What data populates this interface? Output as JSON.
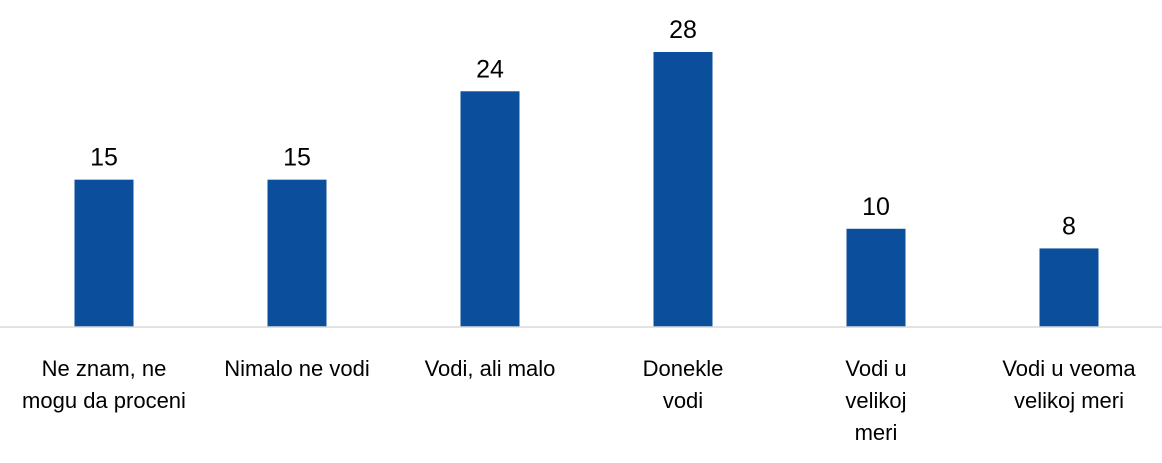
{
  "chart_data": {
    "type": "bar",
    "categories": [
      "Ne znam, ne mogu da proceni",
      "Nimalo ne vodi",
      "Vodi, ali malo",
      "Donekle vodi",
      "Vodi u velikoj meri",
      "Vodi u veoma velikoj meri"
    ],
    "values": [
      15,
      15,
      24,
      28,
      10,
      8
    ],
    "color": "#0b4f9c"
  }
}
